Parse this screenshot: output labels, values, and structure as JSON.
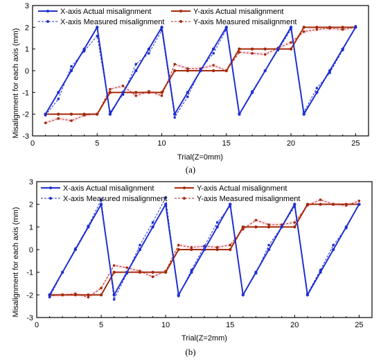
{
  "colors": {
    "x_axis": "#1f2fd0",
    "y_axis": "#a52a0a",
    "band": "#f7c0d6",
    "frame": "#000000"
  },
  "chart_data": [
    {
      "type": "line",
      "caption": "(a)",
      "xlabel": "Trial(Z=0mm)",
      "ylabel": "Misalignment for each axis (mm)",
      "xlim": [
        0,
        26
      ],
      "ylim": [
        -3,
        3
      ],
      "xticks": [
        0,
        5,
        10,
        15,
        20,
        25
      ],
      "yticks": [
        -3,
        -2,
        -1,
        0,
        1,
        2,
        3
      ],
      "grid": false,
      "legend": "top, two columns",
      "x": [
        1,
        2,
        3,
        4,
        5,
        6,
        7,
        8,
        9,
        10,
        11,
        12,
        13,
        14,
        15,
        16,
        17,
        18,
        19,
        20,
        21,
        22,
        23,
        24,
        25
      ],
      "series": [
        {
          "name": "X-axis Actual misalignment",
          "style": "solid",
          "color": "#1f2fd0",
          "values": [
            -2,
            -1,
            0,
            1,
            2,
            -2,
            -1,
            0,
            1,
            2,
            -2,
            -1,
            0,
            1,
            2,
            -2,
            -1,
            0,
            1,
            2,
            -2,
            -1,
            0,
            1,
            2
          ]
        },
        {
          "name": "Y-axis Actual misalignment",
          "style": "solid",
          "color": "#a52a0a",
          "values": [
            -2,
            -2,
            -2,
            -2,
            -2,
            -1,
            -1,
            -1,
            -1,
            -1,
            0,
            0,
            0,
            0,
            0,
            1,
            1,
            1,
            1,
            1,
            2,
            2,
            2,
            2,
            2
          ]
        },
        {
          "name": "X-axis Measured misalignment",
          "style": "dashed",
          "color": "#1f2fd0",
          "values": [
            -2.05,
            -1.3,
            0.2,
            0.9,
            1.6,
            -1.9,
            -1.1,
            0.3,
            0.8,
            1.85,
            -2.15,
            -1.2,
            0.05,
            0.8,
            1.9,
            -2.0,
            -0.95,
            0.0,
            0.95,
            1.9,
            -1.9,
            -0.8,
            -0.1,
            0.95,
            2.05
          ]
        },
        {
          "name": "Y-axis Measured misalignment",
          "style": "dashed",
          "color": "#a52a0a",
          "values": [
            -2.4,
            -2.2,
            -2.3,
            -2.05,
            -2.0,
            -0.85,
            -0.7,
            -1.15,
            -0.95,
            -1.15,
            0.3,
            0.1,
            0.1,
            0.25,
            0.0,
            0.85,
            0.8,
            0.75,
            1.05,
            1.3,
            1.8,
            1.9,
            1.95,
            1.9,
            2.0
          ]
        }
      ]
    },
    {
      "type": "line",
      "caption": "(b)",
      "xlabel": "Trial(Z=2mm)",
      "ylabel": "Misalignment for each axis (mm)",
      "xlim": [
        0,
        26
      ],
      "ylim": [
        -3,
        3
      ],
      "xticks": [
        0,
        5,
        10,
        15,
        20,
        25
      ],
      "yticks": [
        -3,
        -2,
        -1,
        0,
        1,
        2,
        3
      ],
      "grid": false,
      "legend": "top, two columns",
      "x": [
        1,
        2,
        3,
        4,
        5,
        6,
        7,
        8,
        9,
        10,
        11,
        12,
        13,
        14,
        15,
        16,
        17,
        18,
        19,
        20,
        21,
        22,
        23,
        24,
        25
      ],
      "series": [
        {
          "name": "X-axis Actual misalignment",
          "style": "solid",
          "color": "#1f2fd0",
          "values": [
            -2,
            -1,
            0,
            1,
            2,
            -2,
            -1,
            0,
            1,
            2,
            -2,
            -1,
            0,
            1,
            2,
            -2,
            -1,
            0,
            1,
            2,
            -2,
            -1,
            0,
            1,
            2
          ]
        },
        {
          "name": "Y-axis Actual misalignment",
          "style": "solid",
          "color": "#a52a0a",
          "values": [
            -2,
            -2,
            -2,
            -2,
            -2,
            -1,
            -1,
            -1,
            -1,
            -1,
            0,
            0,
            0,
            0,
            0,
            1,
            1,
            1,
            1,
            1,
            2,
            2,
            2,
            2,
            2
          ]
        },
        {
          "name": "X-axis Measured misalignment",
          "style": "dashed",
          "color": "#1f2fd0",
          "values": [
            -2.1,
            -1.0,
            0.05,
            1.05,
            2.2,
            -2.2,
            -1.05,
            0.2,
            1.2,
            2.3,
            -2.05,
            -0.9,
            0.15,
            1.2,
            1.9,
            -2.0,
            -1.05,
            0.2,
            1.0,
            1.9,
            -1.95,
            -0.9,
            0.2,
            0.95,
            2.0
          ]
        },
        {
          "name": "Y-axis Measured misalignment",
          "style": "dashed",
          "color": "#a52a0a",
          "values": [
            -2.05,
            -2.0,
            -1.95,
            -2.1,
            -1.7,
            -0.7,
            -0.8,
            -0.95,
            -1.2,
            -0.95,
            0.2,
            0.1,
            0.15,
            0.1,
            0.2,
            0.9,
            1.3,
            1.1,
            1.1,
            1.2,
            1.95,
            2.2,
            2.0,
            1.95,
            2.15
          ]
        }
      ]
    }
  ]
}
